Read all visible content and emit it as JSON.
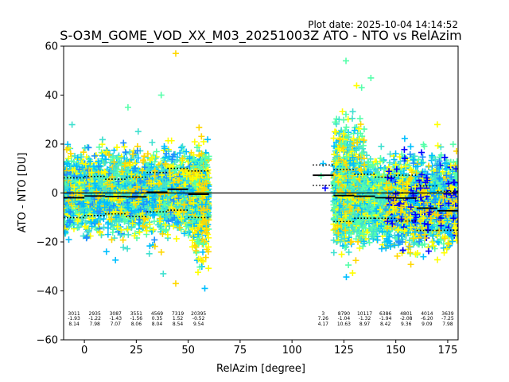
{
  "chart_data": {
    "type": "scatter",
    "title": "S-O3M_GOME_VOD_XX_M03_20251003Z ATO - NTO vs RelAzim",
    "plot_date": "Plot date: 2025-10-04 14:14:52",
    "xlabel": "RelAzim [degree]",
    "ylabel": "ATO - NTO [DU]",
    "xlim": [
      -10,
      180
    ],
    "ylim": [
      -60,
      60
    ],
    "xticks": [
      0,
      25,
      50,
      75,
      100,
      125,
      150,
      175
    ],
    "yticks": [
      -60,
      -40,
      -20,
      0,
      20,
      40,
      60
    ],
    "colors": {
      "blue": "#0000ff",
      "mid_blue": "#1e90ff",
      "azure": "#00bfff",
      "cyan": "#40e0d0",
      "green": "#55ffaa",
      "yellow": "#ffff00",
      "gold": "#ffd700",
      "orange": "#ffa500",
      "grid_line": "#000000"
    },
    "bins": [
      {
        "xmin": -10,
        "xmax": 0,
        "count": "3011",
        "mean": "-1.93",
        "std": "8.14",
        "m": -1.93,
        "s": 8.14
      },
      {
        "xmin": 0,
        "xmax": 10,
        "count": "2935",
        "mean": "-1.22",
        "std": "7.98",
        "m": -1.22,
        "s": 7.98
      },
      {
        "xmin": 10,
        "xmax": 20,
        "count": "3087",
        "mean": "-1.43",
        "std": "7.07",
        "m": -1.43,
        "s": 7.07
      },
      {
        "xmin": 20,
        "xmax": 30,
        "count": "3551",
        "mean": "-1.56",
        "std": "8.06",
        "m": -1.56,
        "s": 8.06
      },
      {
        "xmin": 30,
        "xmax": 40,
        "count": "4569",
        "mean": "0.35",
        "std": "8.04",
        "m": 0.35,
        "s": 8.04
      },
      {
        "xmin": 40,
        "xmax": 50,
        "count": "7319",
        "mean": "1.52",
        "std": "8.54",
        "m": 1.52,
        "s": 8.54
      },
      {
        "xmin": 50,
        "xmax": 60,
        "count": "20395",
        "mean": "-0.52",
        "std": "9.54",
        "m": -0.52,
        "s": 9.54
      },
      {
        "xmin": 110,
        "xmax": 120,
        "count": "3",
        "mean": "7.26",
        "std": "4.17",
        "m": 7.26,
        "s": 4.17
      },
      {
        "xmin": 120,
        "xmax": 130,
        "count": "8790",
        "mean": "-1.04",
        "std": "10.63",
        "m": -1.04,
        "s": 10.63
      },
      {
        "xmin": 130,
        "xmax": 140,
        "count": "10117",
        "mean": "-1.32",
        "std": "8.97",
        "m": -1.32,
        "s": 8.97
      },
      {
        "xmin": 140,
        "xmax": 150,
        "count": "6386",
        "mean": "-1.94",
        "std": "8.42",
        "m": -1.94,
        "s": 8.42
      },
      {
        "xmin": 150,
        "xmax": 160,
        "count": "4801",
        "mean": "-2.08",
        "std": "9.36",
        "m": -2.08,
        "s": 9.36
      },
      {
        "xmin": 160,
        "xmax": 170,
        "count": "4014",
        "mean": "-6.20",
        "std": "9.09",
        "m": -6.2,
        "s": 9.09
      },
      {
        "xmin": 170,
        "xmax": 180,
        "count": "3639",
        "mean": "-7.25",
        "std": "7.98",
        "m": -7.25,
        "s": 7.98
      }
    ],
    "clusters": [
      {
        "x": [
          -10,
          60
        ],
        "y": [
          -22,
          22
        ],
        "palette": [
          "green",
          "cyan",
          "azure",
          "yellow",
          "green",
          "cyan"
        ],
        "n": 2600
      },
      {
        "x": [
          -10,
          60
        ],
        "y": [
          -30,
          30
        ],
        "palette": [
          "cyan",
          "azure",
          "gold",
          "yellow",
          "mid_blue"
        ],
        "n": 700
      },
      {
        "x": [
          52,
          60
        ],
        "y": [
          -40,
          30
        ],
        "palette": [
          "gold",
          "yellow",
          "green",
          "azure"
        ],
        "n": 300
      },
      {
        "x": [
          120,
          180
        ],
        "y": [
          -28,
          22
        ],
        "palette": [
          "green",
          "cyan",
          "azure",
          "yellow",
          "green",
          "cyan"
        ],
        "n": 2600
      },
      {
        "x": [
          120,
          135
        ],
        "y": [
          -34,
          45
        ],
        "palette": [
          "cyan",
          "azure",
          "yellow",
          "green",
          "gold"
        ],
        "n": 500
      },
      {
        "x": [
          145,
          180
        ],
        "y": [
          -34,
          25
        ],
        "palette": [
          "blue",
          "mid_blue",
          "azure",
          "yellow",
          "gold"
        ],
        "n": 500
      }
    ],
    "outliers": [
      {
        "x": 44,
        "y": 57,
        "c": "gold"
      },
      {
        "x": 126,
        "y": 54,
        "c": "green"
      },
      {
        "x": 138,
        "y": 47,
        "c": "green"
      },
      {
        "x": 37,
        "y": 40,
        "c": "green"
      },
      {
        "x": 21,
        "y": 35,
        "c": "green"
      },
      {
        "x": 44,
        "y": -37,
        "c": "gold"
      },
      {
        "x": 38,
        "y": -33,
        "c": "cyan"
      },
      {
        "x": 115,
        "y": 12,
        "c": "azure"
      },
      {
        "x": 116,
        "y": 2,
        "c": "blue"
      },
      {
        "x": 114,
        "y": 7,
        "c": "green"
      },
      {
        "x": 58,
        "y": -39,
        "c": "azure"
      },
      {
        "x": 170,
        "y": 28,
        "c": "yellow"
      }
    ]
  }
}
